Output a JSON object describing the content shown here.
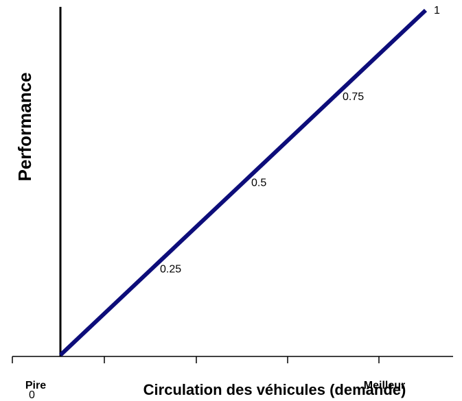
{
  "chart_data": {
    "type": "line",
    "x_title": "Circulation des véhicules (demande)",
    "y_title": "Performance",
    "x_end_labels": [
      "Pire",
      "Meilleur"
    ],
    "x": [
      0,
      0.25,
      0.5,
      0.75,
      1
    ],
    "series": [
      {
        "color": "#0d0d7a",
        "values": [
          0,
          0.25,
          0.5,
          0.75,
          1
        ]
      }
    ],
    "xlim": [
      0,
      1
    ],
    "ylim": [
      0,
      1
    ]
  }
}
